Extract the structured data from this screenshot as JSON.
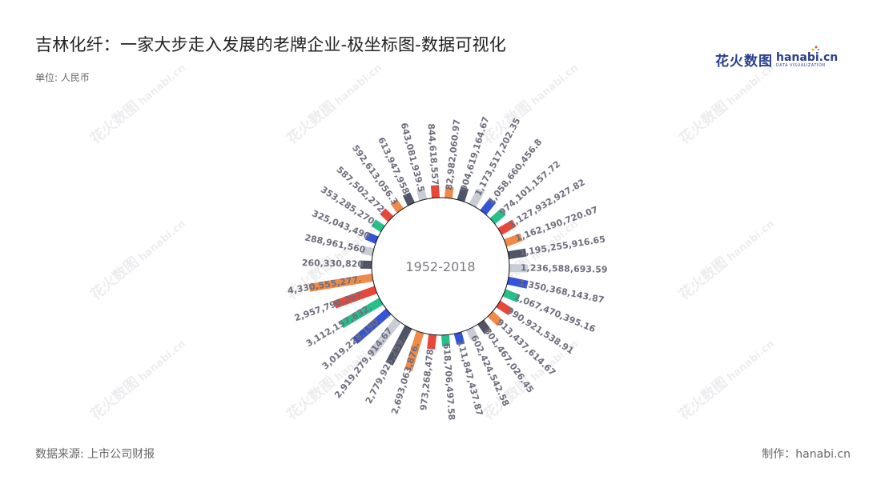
{
  "header": {
    "title": "吉林化纤：一家大步走入发展的老牌企业-极坐标图-数据可视化",
    "unit": "单位: 人民币"
  },
  "logo": {
    "cn_text": "花火数图",
    "en_text": "hanabi.cn",
    "en_sub": "DATA VISUALIZATION"
  },
  "footer": {
    "source": "数据来源: 上市公司财报",
    "credit": "制作：hanabi.cn"
  },
  "watermark": {
    "cn": "花火数图",
    "en": "hanabi.cn"
  },
  "colors": {
    "palette": [
      "#e8473a",
      "#f08a48",
      "#4f5467",
      "#c9cdd6",
      "#3553d6",
      "#27c08b"
    ]
  },
  "chart_data": {
    "type": "polar-bar",
    "center_label": "1952-2018",
    "values_are_estimated": true,
    "labels": [
      "844,618,557.",
      "82,982,060.97",
      "904,619,164.67",
      "1,173,517,202.35",
      "1,058,660,456.8",
      "974,101,157.72",
      "1,127,932,927.82",
      "1,162,190,720.07",
      "1,195,255,916.65",
      "1,236,588,693.59",
      "1,350,368,143.87",
      "1,067,470,395.16",
      "990,921,538.91",
      "913,437,614.67",
      "801,467,026.45",
      "602,424,542.58",
      "111,847,437.87",
      "618,706,497.58",
      "973,268,478.",
      "2,693,063,876.",
      "2,779,925,259.",
      "2,919,279,914.67",
      "3,019,228,190.",
      "3,112,157,632.",
      "2,957,798,357.",
      "4,330,555,277.",
      "260,330,820",
      "288,961,560",
      "325,043,490",
      "353,285,270.",
      "587,502,272.",
      "592,613,056.3",
      "613,947,958.",
      "643,081,939.5"
    ],
    "values": [
      844618557,
      82982060.97,
      904619164.67,
      1173517202.35,
      1058660456.8,
      974101157.72,
      1127932927.82,
      1162190720.07,
      1195255916.65,
      1236588693.59,
      1350368143.87,
      1067470395.16,
      990921538.91,
      913437614.67,
      801467026.45,
      602424542.58,
      111847437.87,
      618706497.58,
      973268478,
      2693063876,
      2779925259,
      2919279914.67,
      3019228190,
      3112157632,
      2957798357,
      4330555277,
      260330820,
      288961560,
      325043490,
      353285270,
      587502272,
      592613056.3,
      613947958,
      643081939.5
    ]
  }
}
